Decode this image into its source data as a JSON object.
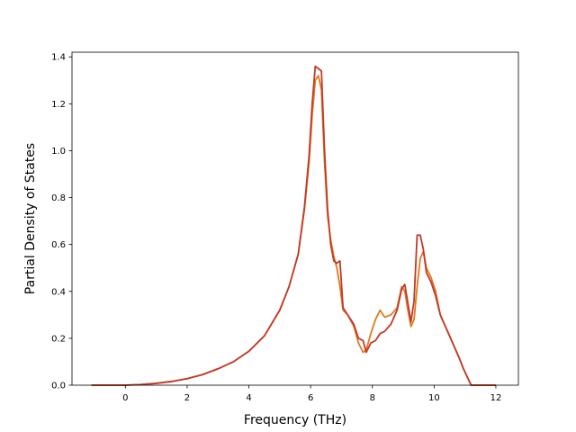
{
  "chart_data": {
    "type": "line",
    "title": "",
    "xlabel": "Frequency (THz)",
    "ylabel": "Partial Density of States",
    "xlim": [
      -1.73,
      12.73
    ],
    "ylim": [
      0.0,
      1.42
    ],
    "xticks": [
      0,
      2,
      4,
      6,
      8,
      10,
      12
    ],
    "xtick_labels": [
      "0",
      "2",
      "4",
      "6",
      "8",
      "10",
      "12"
    ],
    "yticks": [
      0.0,
      0.2,
      0.4,
      0.6,
      0.8,
      1.0,
      1.2,
      1.4
    ],
    "ytick_labels": [
      "0.0",
      "0.2",
      "0.4",
      "0.6",
      "0.8",
      "1.0",
      "1.2",
      "1.4"
    ],
    "grid": false,
    "series": [
      {
        "color": "#e07a1f",
        "x": [
          -1.1,
          0.0,
          0.5,
          1.0,
          1.5,
          2.0,
          2.5,
          3.0,
          3.5,
          4.0,
          4.5,
          5.0,
          5.3,
          5.6,
          5.8,
          5.95,
          6.05,
          6.15,
          6.25,
          6.35,
          6.45,
          6.55,
          6.65,
          6.75,
          6.85,
          6.95,
          7.05,
          7.2,
          7.4,
          7.55,
          7.7,
          7.8,
          7.95,
          8.1,
          8.25,
          8.4,
          8.6,
          8.8,
          8.95,
          9.05,
          9.15,
          9.25,
          9.35,
          9.45,
          9.55,
          9.65,
          9.75,
          9.9,
          10.05,
          10.2,
          10.5,
          10.8,
          10.95,
          11.2,
          11.6,
          12.0
        ],
        "y": [
          0.0,
          0.0,
          0.003,
          0.008,
          0.016,
          0.028,
          0.045,
          0.07,
          0.1,
          0.145,
          0.21,
          0.32,
          0.42,
          0.56,
          0.75,
          0.95,
          1.15,
          1.3,
          1.32,
          1.26,
          0.95,
          0.72,
          0.62,
          0.55,
          0.5,
          0.42,
          0.32,
          0.3,
          0.25,
          0.18,
          0.14,
          0.15,
          0.22,
          0.28,
          0.32,
          0.29,
          0.3,
          0.33,
          0.42,
          0.4,
          0.32,
          0.25,
          0.28,
          0.42,
          0.54,
          0.57,
          0.5,
          0.46,
          0.4,
          0.3,
          0.21,
          0.12,
          0.07,
          0.0,
          0.0,
          0.0
        ]
      },
      {
        "color": "#c03a2b",
        "x": [
          -1.1,
          0.0,
          0.5,
          1.0,
          1.5,
          2.0,
          2.5,
          3.0,
          3.5,
          4.0,
          4.5,
          5.0,
          5.3,
          5.6,
          5.8,
          5.95,
          6.05,
          6.15,
          6.25,
          6.35,
          6.45,
          6.55,
          6.65,
          6.75,
          6.85,
          6.95,
          7.05,
          7.2,
          7.4,
          7.55,
          7.7,
          7.8,
          7.95,
          8.1,
          8.25,
          8.4,
          8.6,
          8.8,
          8.95,
          9.05,
          9.15,
          9.25,
          9.35,
          9.45,
          9.55,
          9.65,
          9.75,
          9.9,
          10.05,
          10.2,
          10.5,
          10.8,
          10.95,
          11.2,
          11.6,
          12.0
        ],
        "y": [
          0.0,
          0.0,
          0.003,
          0.008,
          0.016,
          0.028,
          0.045,
          0.07,
          0.1,
          0.145,
          0.21,
          0.32,
          0.42,
          0.56,
          0.76,
          0.98,
          1.2,
          1.36,
          1.35,
          1.34,
          1.0,
          0.75,
          0.6,
          0.53,
          0.52,
          0.53,
          0.33,
          0.3,
          0.26,
          0.2,
          0.19,
          0.14,
          0.18,
          0.19,
          0.22,
          0.23,
          0.26,
          0.32,
          0.41,
          0.43,
          0.35,
          0.27,
          0.36,
          0.64,
          0.64,
          0.58,
          0.48,
          0.44,
          0.38,
          0.3,
          0.21,
          0.12,
          0.07,
          0.0,
          0.0,
          0.0
        ]
      }
    ]
  }
}
